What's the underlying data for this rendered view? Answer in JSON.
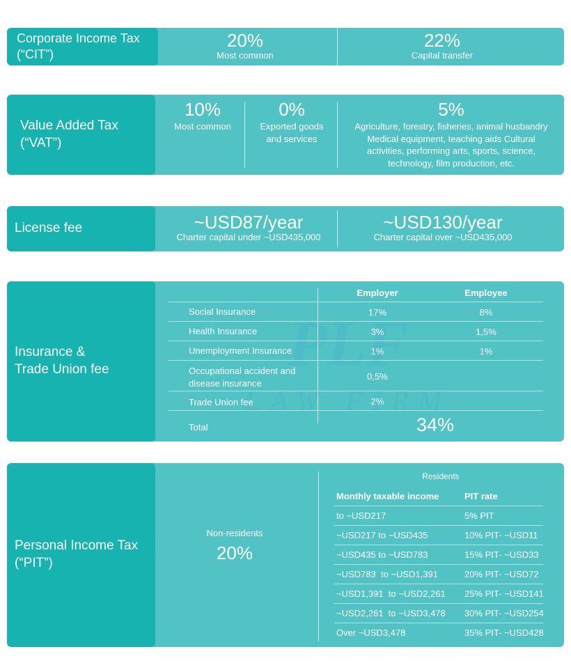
{
  "colors": {
    "card": "#52c3c5",
    "label": "#17b3b1",
    "text": "#ffffff"
  },
  "cit": {
    "label": "Corporate Income Tax (“CIT”)",
    "items": [
      {
        "value": "20%",
        "desc": "Most common"
      },
      {
        "value": "22%",
        "desc": "Capital transfer"
      }
    ]
  },
  "vat": {
    "label": "Value Added Tax (“VAT”)",
    "items": [
      {
        "value": "10%",
        "desc": "Most common"
      },
      {
        "value": "0%",
        "desc": "Exported goods and services"
      },
      {
        "value": "5%",
        "desc": "Agriculture, forestry, fisheries, animal husbandry Medical equipment, teaching aids Cultural activities, performing arts, sports, science, technology, film production, etc."
      }
    ]
  },
  "license": {
    "label": "License fee",
    "items": [
      {
        "value": "~USD87/year",
        "desc": "Charter capital under ~USD435,000"
      },
      {
        "value": "~USD130/year",
        "desc": "Charter capital over ~USD435,000"
      }
    ]
  },
  "insurance": {
    "label": "Insurance & Trade Union fee",
    "headers": [
      "Employer",
      "Employee"
    ],
    "rows": [
      {
        "name": "Social Insurance",
        "employer": "17%",
        "employee": "8%"
      },
      {
        "name": "Health Insurance",
        "employer": "3%",
        "employee": "1,5%"
      },
      {
        "name": "Unemployment Insurance",
        "employer": "1%",
        "employee": "1%"
      },
      {
        "name": "Occupational accident and disease insurance",
        "employer": "0,5%",
        "employee": ""
      },
      {
        "name": "Trade Union fee",
        "employer": "2%",
        "employee": ""
      }
    ],
    "total_label": "Total",
    "total_value": "34%",
    "watermark": {
      "line1": "PLF",
      "line2": "LAW FIRM"
    }
  },
  "pit": {
    "label": "Personal Income Tax (“PIT”)",
    "nonresidents_label": "Non-residents",
    "nonresidents_value": "20%",
    "residents_label": "Residents",
    "headers": [
      "Monthly taxable income",
      "PIT rate"
    ],
    "rows": [
      {
        "income": "to ~USD217",
        "rate": "5% PIT"
      },
      {
        "income": "~USD217 to ~USD435",
        "rate": "10% PIT- ~USD11"
      },
      {
        "income": "~USD435 to ~USD783",
        "rate": "15% PIT- ~USD33"
      },
      {
        "income": "~USD783  to ~USD1,391",
        "rate": "20% PIT- ~USD72"
      },
      {
        "income": "~USD1,391  to ~USD2,261",
        "rate": "25% PIT- ~USD141"
      },
      {
        "income": "~USD2,261  to ~USD3,478",
        "rate": "30% PIT- ~USD254"
      },
      {
        "income": "Over ~USD3,478",
        "rate": "35% PIT- ~USD428"
      }
    ]
  }
}
